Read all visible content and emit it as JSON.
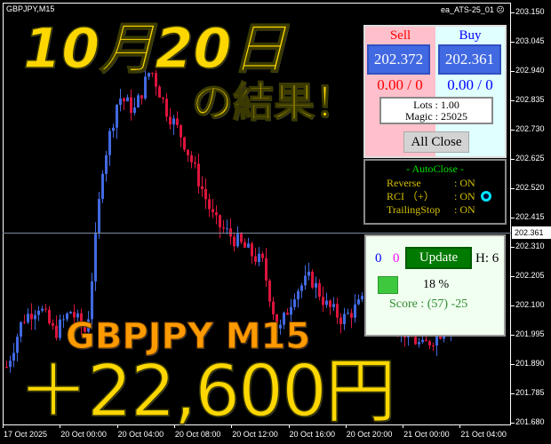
{
  "chart": {
    "symbol_label": "GBPJPY,M15",
    "ea_label": "ea_ATS-25_01",
    "ea_icon": "sad-face-icon",
    "price_ticks": [
      "203.150",
      "203.045",
      "202.940",
      "202.835",
      "202.730",
      "202.625",
      "202.520",
      "202.415",
      "202.310",
      "202.205",
      "202.100",
      "201.995",
      "201.890",
      "201.785",
      "201.680"
    ],
    "current_price": "202.361",
    "time_ticks": [
      "17 Oct 2025",
      "20 Oct 00:00",
      "20 Oct 04:00",
      "20 Oct 08:00",
      "20 Oct 12:00",
      "20 Oct 16:00",
      "20 Oct 20:00",
      "21 Oct 00:00",
      "21 Oct 04:00"
    ],
    "colors": {
      "bull": "#4169e1",
      "bear": "#dc143c",
      "background": "#000000"
    },
    "price_path": [
      201.88,
      202.05,
      202.1,
      202.0,
      202.08,
      202.0,
      202.6,
      202.85,
      202.8,
      202.95,
      202.8,
      202.7,
      202.55,
      202.4,
      202.35,
      202.3,
      202.25,
      202.0,
      202.15,
      202.2,
      202.1,
      202.05,
      202.1,
      202.15,
      202.05,
      202.0,
      201.95,
      202.0,
      202.05,
      202.2,
      202.36
    ]
  },
  "trade_panel": {
    "sell_label": "Sell",
    "buy_label": "Buy",
    "sell_price": "202.372",
    "buy_price": "202.361",
    "sell_pl": "0.00 / 0",
    "buy_pl": "0.00 / 0",
    "lots": "Lots   : 1.00",
    "magic": "Magic : 25025",
    "all_close": "All Close"
  },
  "auto_close": {
    "title": "- AutoClose -",
    "rows": [
      {
        "k": "Reverse",
        "v": ": ON"
      },
      {
        "k": "RCI （+）",
        "v": ": ON"
      },
      {
        "k": "TrailingStop",
        "v": ": ON"
      }
    ],
    "indicator_color": "#00e5ff"
  },
  "update_panel": {
    "count_blue": "0",
    "count_magenta": "0",
    "update_label": "Update",
    "h_label": "H: 6",
    "percent": "18 %",
    "score": "Score : (57) -25"
  },
  "overlay": {
    "date": "10月20日",
    "result": "の結果！",
    "pair": "GBPJPY  M15",
    "profit": "＋22,600円"
  }
}
